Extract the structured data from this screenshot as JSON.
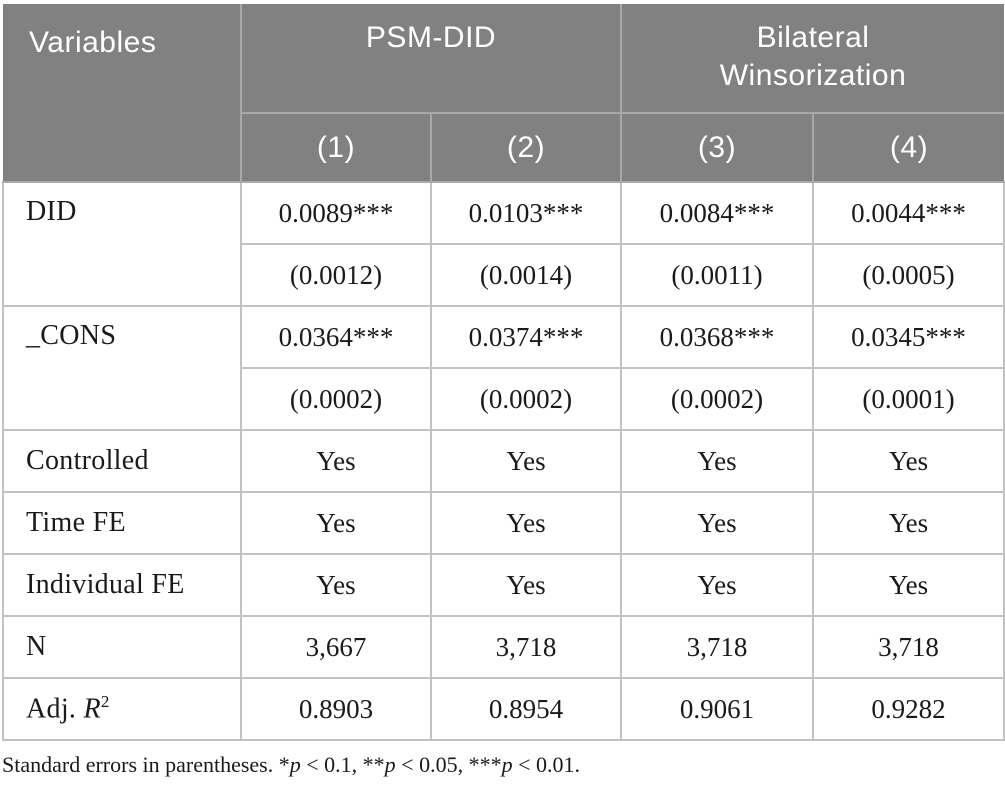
{
  "table": {
    "header": {
      "variables_label": "Variables",
      "groups": [
        {
          "label": "PSM-DID"
        },
        {
          "label": "Bilateral\nWinsorization"
        }
      ],
      "columns": [
        "(1)",
        "(2)",
        "(3)",
        "(4)"
      ]
    },
    "rows": [
      {
        "label": "DID",
        "coef": [
          "0.0089***",
          "0.0103***",
          "0.0084***",
          "0.0044***"
        ],
        "se": [
          "(0.0012)",
          "(0.0014)",
          "(0.0011)",
          "(0.0005)"
        ]
      },
      {
        "label": "_CONS",
        "coef": [
          "0.0364***",
          "0.0374***",
          "0.0368***",
          "0.0345***"
        ],
        "se": [
          "(0.0002)",
          "(0.0002)",
          "(0.0002)",
          "(0.0001)"
        ]
      },
      {
        "label": "Controlled",
        "values": [
          "Yes",
          "Yes",
          "Yes",
          "Yes"
        ]
      },
      {
        "label": "Time FE",
        "values": [
          "Yes",
          "Yes",
          "Yes",
          "Yes"
        ]
      },
      {
        "label": "Individual FE",
        "values": [
          "Yes",
          "Yes",
          "Yes",
          "Yes"
        ]
      },
      {
        "label": "N",
        "values": [
          "3,667",
          "3,718",
          "3,718",
          "3,718"
        ]
      },
      {
        "label_prefix": "Adj. ",
        "label_symbol": "R",
        "label_sup": "2",
        "values": [
          "0.8903",
          "0.8954",
          "0.9061",
          "0.9282"
        ]
      }
    ],
    "footnote": {
      "part1": "Standard errors in parentheses. *",
      "p1": "p",
      "part2": " < 0.1, **",
      "p2": "p",
      "part3": " < 0.05, ***",
      "p3": "p",
      "part4": " < 0.01."
    }
  },
  "colors": {
    "header_bg": "#818181",
    "header_divider": "#a8a8a8",
    "header_text": "#ffffff",
    "body_border": "#c2c2c2",
    "body_text": "#1a1a1a"
  }
}
